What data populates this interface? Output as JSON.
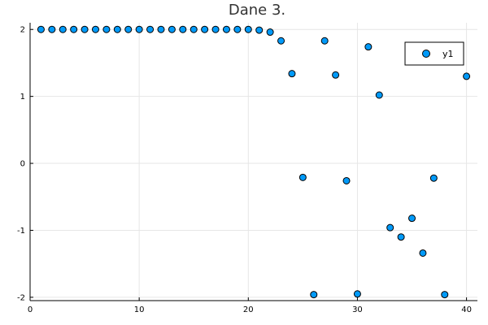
{
  "chart_data": {
    "type": "scatter",
    "title": "Dane 3.",
    "xlabel": "",
    "ylabel": "",
    "xlim": [
      0,
      41
    ],
    "ylim": [
      -2.05,
      2.1
    ],
    "x_ticks": [
      0,
      10,
      20,
      30,
      40
    ],
    "y_ticks": [
      -2,
      -1,
      0,
      1,
      2
    ],
    "grid": true,
    "legend_position": "top-right",
    "series": [
      {
        "name": "y1",
        "color": "#009af9",
        "x": [
          1,
          2,
          3,
          4,
          5,
          6,
          7,
          8,
          9,
          10,
          11,
          12,
          13,
          14,
          15,
          16,
          17,
          18,
          19,
          20,
          21,
          22,
          23,
          24,
          25,
          26,
          27,
          28,
          29,
          30,
          31,
          32,
          33,
          34,
          35,
          36,
          37,
          38,
          39,
          40
        ],
        "y": [
          2.0,
          2.0,
          2.0,
          2.0,
          2.0,
          2.0,
          2.0,
          2.0,
          2.0,
          2.0,
          2.0,
          2.0,
          2.0,
          2.0,
          2.0,
          2.0,
          2.0,
          2.0,
          2.0,
          2.0,
          1.99,
          1.96,
          1.83,
          1.34,
          -0.21,
          -1.96,
          1.83,
          1.32,
          -0.26,
          -1.95,
          1.74,
          1.02,
          -0.96,
          -1.1,
          -0.82,
          -1.34,
          -0.22,
          -1.96,
          null,
          1.3
        ]
      }
    ]
  }
}
